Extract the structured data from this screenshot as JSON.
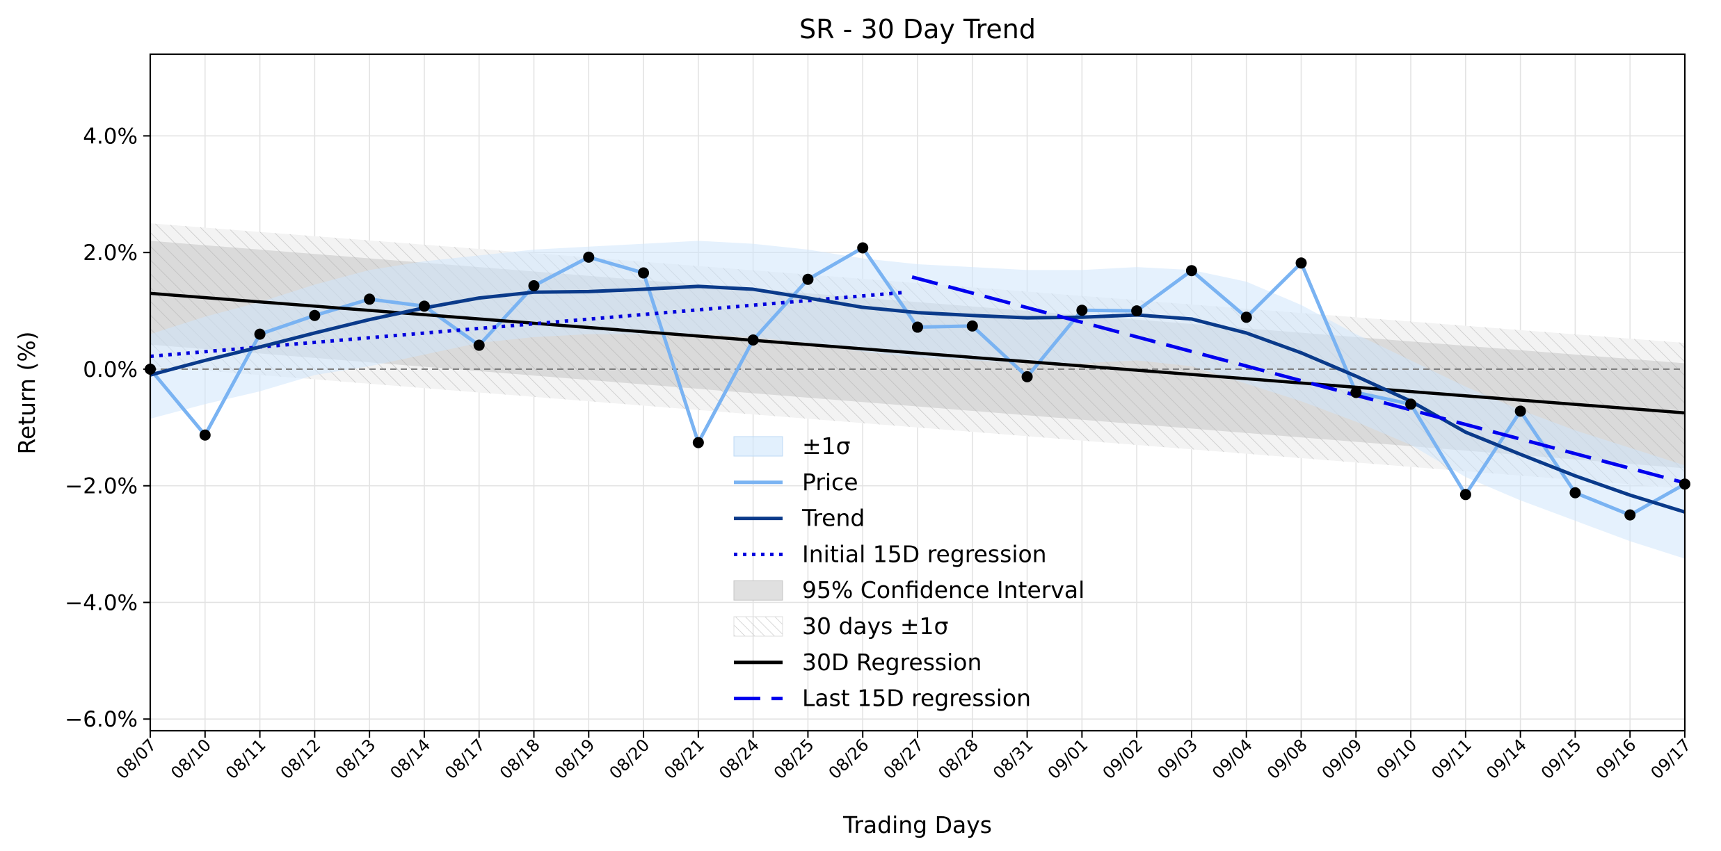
{
  "chart_data": {
    "type": "line",
    "title": "SR - 30 Day Trend",
    "xlabel": "Trading Days",
    "ylabel": "Return (%)",
    "categories": [
      "08/07",
      "08/10",
      "08/11",
      "08/12",
      "08/13",
      "08/14",
      "08/17",
      "08/18",
      "08/19",
      "08/20",
      "08/21",
      "08/24",
      "08/25",
      "08/26",
      "08/27",
      "08/28",
      "08/31",
      "09/01",
      "09/02",
      "09/03",
      "09/04",
      "09/08",
      "09/09",
      "09/10",
      "09/11",
      "09/14",
      "09/15",
      "09/16",
      "09/17"
    ],
    "ylim": [
      -6.2,
      5.4
    ],
    "yticks": [
      4.0,
      2.0,
      0.0,
      -2.0,
      -4.0,
      -6.0
    ],
    "ytick_labels": [
      "4.0%",
      "2.0%",
      "0.0%",
      "−2.0%",
      "−4.0%",
      "−6.0%"
    ],
    "grid": true,
    "legend_position": "bottom-center",
    "colors": {
      "price": "#7ab3f2",
      "trend": "#0a3a8a",
      "sigma_band": "#cfe6fb",
      "ci_band": "#b4b4b4",
      "initial_reg": "#0000dd",
      "last_reg": "#0000ee",
      "reg30": "#000000",
      "zero_line": "#808080"
    },
    "series": [
      {
        "name": "Price",
        "values": [
          0.0,
          -1.13,
          0.6,
          0.92,
          1.2,
          1.08,
          0.41,
          1.43,
          1.92,
          1.65,
          -1.26,
          0.5,
          1.54,
          2.08,
          0.72,
          0.74,
          -0.13,
          1.01,
          1.0,
          1.69,
          0.89,
          1.82,
          -0.4,
          -0.6,
          -2.15,
          -0.72,
          -2.12,
          -2.5,
          -1.97
        ]
      },
      {
        "name": "Trend",
        "values": [
          -0.1,
          0.15,
          0.38,
          0.62,
          0.85,
          1.05,
          1.22,
          1.32,
          1.33,
          1.37,
          1.42,
          1.37,
          1.22,
          1.06,
          0.97,
          0.92,
          0.88,
          0.89,
          0.93,
          0.86,
          0.62,
          0.28,
          -0.12,
          -0.55,
          -1.08,
          -1.46,
          -1.83,
          -2.16,
          -2.45
        ]
      },
      {
        "name": "±1σ",
        "upper": [
          0.6,
          0.9,
          1.15,
          1.45,
          1.7,
          1.85,
          1.95,
          2.05,
          2.1,
          2.15,
          2.2,
          2.15,
          2.05,
          1.9,
          1.8,
          1.75,
          1.7,
          1.7,
          1.75,
          1.7,
          1.5,
          1.1,
          0.6,
          0.15,
          -0.3,
          -0.7,
          -1.05,
          -1.35,
          -1.65
        ],
        "lower": [
          -0.85,
          -0.6,
          -0.38,
          -0.1,
          0.05,
          0.25,
          0.45,
          0.55,
          0.6,
          0.6,
          0.6,
          0.55,
          0.45,
          0.3,
          0.2,
          0.15,
          0.1,
          0.1,
          0.15,
          0.05,
          -0.25,
          -0.55,
          -0.9,
          -1.3,
          -1.85,
          -2.25,
          -2.6,
          -2.95,
          -3.25
        ]
      },
      {
        "name": "Initial 15D regression",
        "x_range": [
          0,
          13.8
        ],
        "y_range": [
          0.22,
          1.32
        ]
      },
      {
        "name": "95% Confidence Interval",
        "upper": [
          2.2,
          0.1
        ],
        "lower": [
          0.42,
          -1.7
        ]
      },
      {
        "name": "30 days ±1σ",
        "upper": [
          2.5,
          0.45
        ],
        "lower": [
          0.05,
          -2.05
        ]
      },
      {
        "name": "30D Regression",
        "y_range": [
          1.3,
          -0.75
        ]
      },
      {
        "name": "Last 15D regression",
        "x_range": [
          13.9,
          28
        ],
        "y_range": [
          1.58,
          -1.95
        ]
      }
    ],
    "legend": [
      "±1σ",
      "Price",
      "Trend",
      "Initial 15D regression",
      "95% Confidence Interval",
      "30 days ±1σ",
      "30D Regression",
      "Last 15D regression"
    ]
  }
}
